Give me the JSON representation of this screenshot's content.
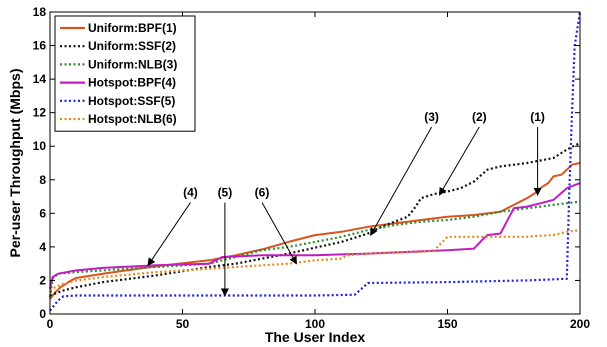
{
  "chart_data": {
    "type": "line",
    "title": "",
    "xlabel": "The User Index",
    "ylabel": "Per-user Throughput (Mbps)",
    "xlim": [
      0,
      200
    ],
    "ylim": [
      0,
      18
    ],
    "xticks": [
      0,
      50,
      100,
      150,
      200
    ],
    "yticks": [
      0,
      2,
      4,
      6,
      8,
      10,
      12,
      14,
      16,
      18
    ],
    "grid": false,
    "legend_position": "top-left",
    "series": [
      {
        "name": "Uniform:BPF(1)",
        "color": "#d9541e",
        "style": "solid",
        "x": [
          0,
          2,
          4,
          6,
          8,
          10,
          20,
          40,
          60,
          70,
          80,
          90,
          100,
          110,
          120,
          130,
          140,
          150,
          160,
          170,
          175,
          180,
          183,
          185,
          188,
          190,
          193,
          195,
          197,
          200
        ],
        "y": [
          0.9,
          1.3,
          1.6,
          1.8,
          2.0,
          2.15,
          2.4,
          2.85,
          3.2,
          3.5,
          3.85,
          4.3,
          4.7,
          4.9,
          5.2,
          5.4,
          5.6,
          5.8,
          5.9,
          6.1,
          6.5,
          6.9,
          7.2,
          7.5,
          7.8,
          8.2,
          8.3,
          8.6,
          8.9,
          9.0
        ]
      },
      {
        "name": "Uniform:SSF(2)",
        "color": "#111111",
        "style": "dotted",
        "x": [
          0,
          5,
          10,
          20,
          30,
          40,
          50,
          60,
          70,
          80,
          90,
          100,
          110,
          120,
          125,
          130,
          135,
          138,
          140,
          145,
          150,
          155,
          160,
          165,
          170,
          180,
          190,
          195,
          200
        ],
        "y": [
          1.1,
          1.4,
          1.6,
          1.9,
          2.1,
          2.3,
          2.55,
          2.8,
          3.0,
          3.3,
          3.6,
          3.95,
          4.3,
          4.8,
          5.2,
          5.5,
          5.8,
          6.4,
          6.9,
          7.15,
          7.3,
          7.5,
          7.9,
          8.6,
          8.8,
          9.0,
          9.3,
          9.8,
          10.2
        ]
      },
      {
        "name": "Uniform:NLB(3)",
        "color": "#2e8b2e",
        "style": "dotted",
        "x": [
          0,
          1,
          3,
          10,
          20,
          40,
          60,
          70,
          80,
          90,
          100,
          110,
          120,
          130,
          140,
          150,
          160,
          170,
          180,
          190,
          200
        ],
        "y": [
          1.0,
          2.1,
          2.4,
          2.5,
          2.6,
          2.8,
          3.0,
          3.4,
          3.8,
          4.0,
          4.3,
          4.6,
          5.0,
          5.3,
          5.5,
          5.6,
          5.8,
          6.1,
          6.3,
          6.5,
          6.7
        ]
      },
      {
        "name": "Hotspot:BPF(4)",
        "color": "#c11ec1",
        "style": "solid",
        "x": [
          0,
          1,
          3,
          10,
          20,
          40,
          60,
          65,
          80,
          100,
          110,
          120,
          150,
          160,
          163,
          165,
          170,
          175,
          180,
          185,
          190,
          195,
          200
        ],
        "y": [
          1.5,
          2.2,
          2.4,
          2.6,
          2.75,
          2.9,
          3.0,
          3.4,
          3.5,
          3.5,
          3.55,
          3.6,
          3.8,
          3.9,
          4.4,
          4.7,
          4.8,
          6.3,
          6.4,
          6.6,
          6.8,
          7.5,
          7.8
        ]
      },
      {
        "name": "Hotspot:SSF(5)",
        "color": "#1f1fd6",
        "style": "dotted",
        "x": [
          0,
          3,
          5,
          10,
          50,
          100,
          115,
          120,
          150,
          180,
          195,
          196,
          197,
          198,
          200
        ],
        "y": [
          0.2,
          0.8,
          1.05,
          1.1,
          1.1,
          1.1,
          1.15,
          1.85,
          1.9,
          2.0,
          2.1,
          7.5,
          12.0,
          16.0,
          18.0
        ]
      },
      {
        "name": "Hotspot:NLB(6)",
        "color": "#e08a1e",
        "style": "dotted",
        "x": [
          0,
          2,
          5,
          10,
          20,
          40,
          60,
          70,
          90,
          100,
          110,
          112,
          120,
          140,
          145,
          150,
          160,
          170,
          180,
          183,
          190,
          195,
          200
        ],
        "y": [
          1.4,
          1.6,
          1.8,
          2.0,
          2.2,
          2.5,
          2.7,
          2.8,
          3.0,
          3.2,
          3.3,
          3.5,
          3.6,
          3.7,
          3.8,
          4.6,
          4.6,
          4.6,
          4.6,
          4.65,
          4.7,
          4.9,
          5.0
        ]
      }
    ],
    "annotations": [
      {
        "text": "(1)",
        "label_at": [
          184,
          11.5
        ],
        "arrow_to": [
          184,
          7.1
        ]
      },
      {
        "text": "(2)",
        "label_at": [
          162,
          11.5
        ],
        "arrow_to": [
          147,
          7.1
        ]
      },
      {
        "text": "(3)",
        "label_at": [
          144,
          11.5
        ],
        "arrow_to": [
          121,
          4.7
        ]
      },
      {
        "text": "(4)",
        "label_at": [
          53,
          7.0
        ],
        "arrow_to": [
          37,
          2.9
        ]
      },
      {
        "text": "(5)",
        "label_at": [
          66,
          7.0
        ],
        "arrow_to": [
          66,
          1.1
        ]
      },
      {
        "text": "(6)",
        "label_at": [
          80,
          7.0
        ],
        "arrow_to": [
          93,
          3.0
        ]
      }
    ]
  }
}
